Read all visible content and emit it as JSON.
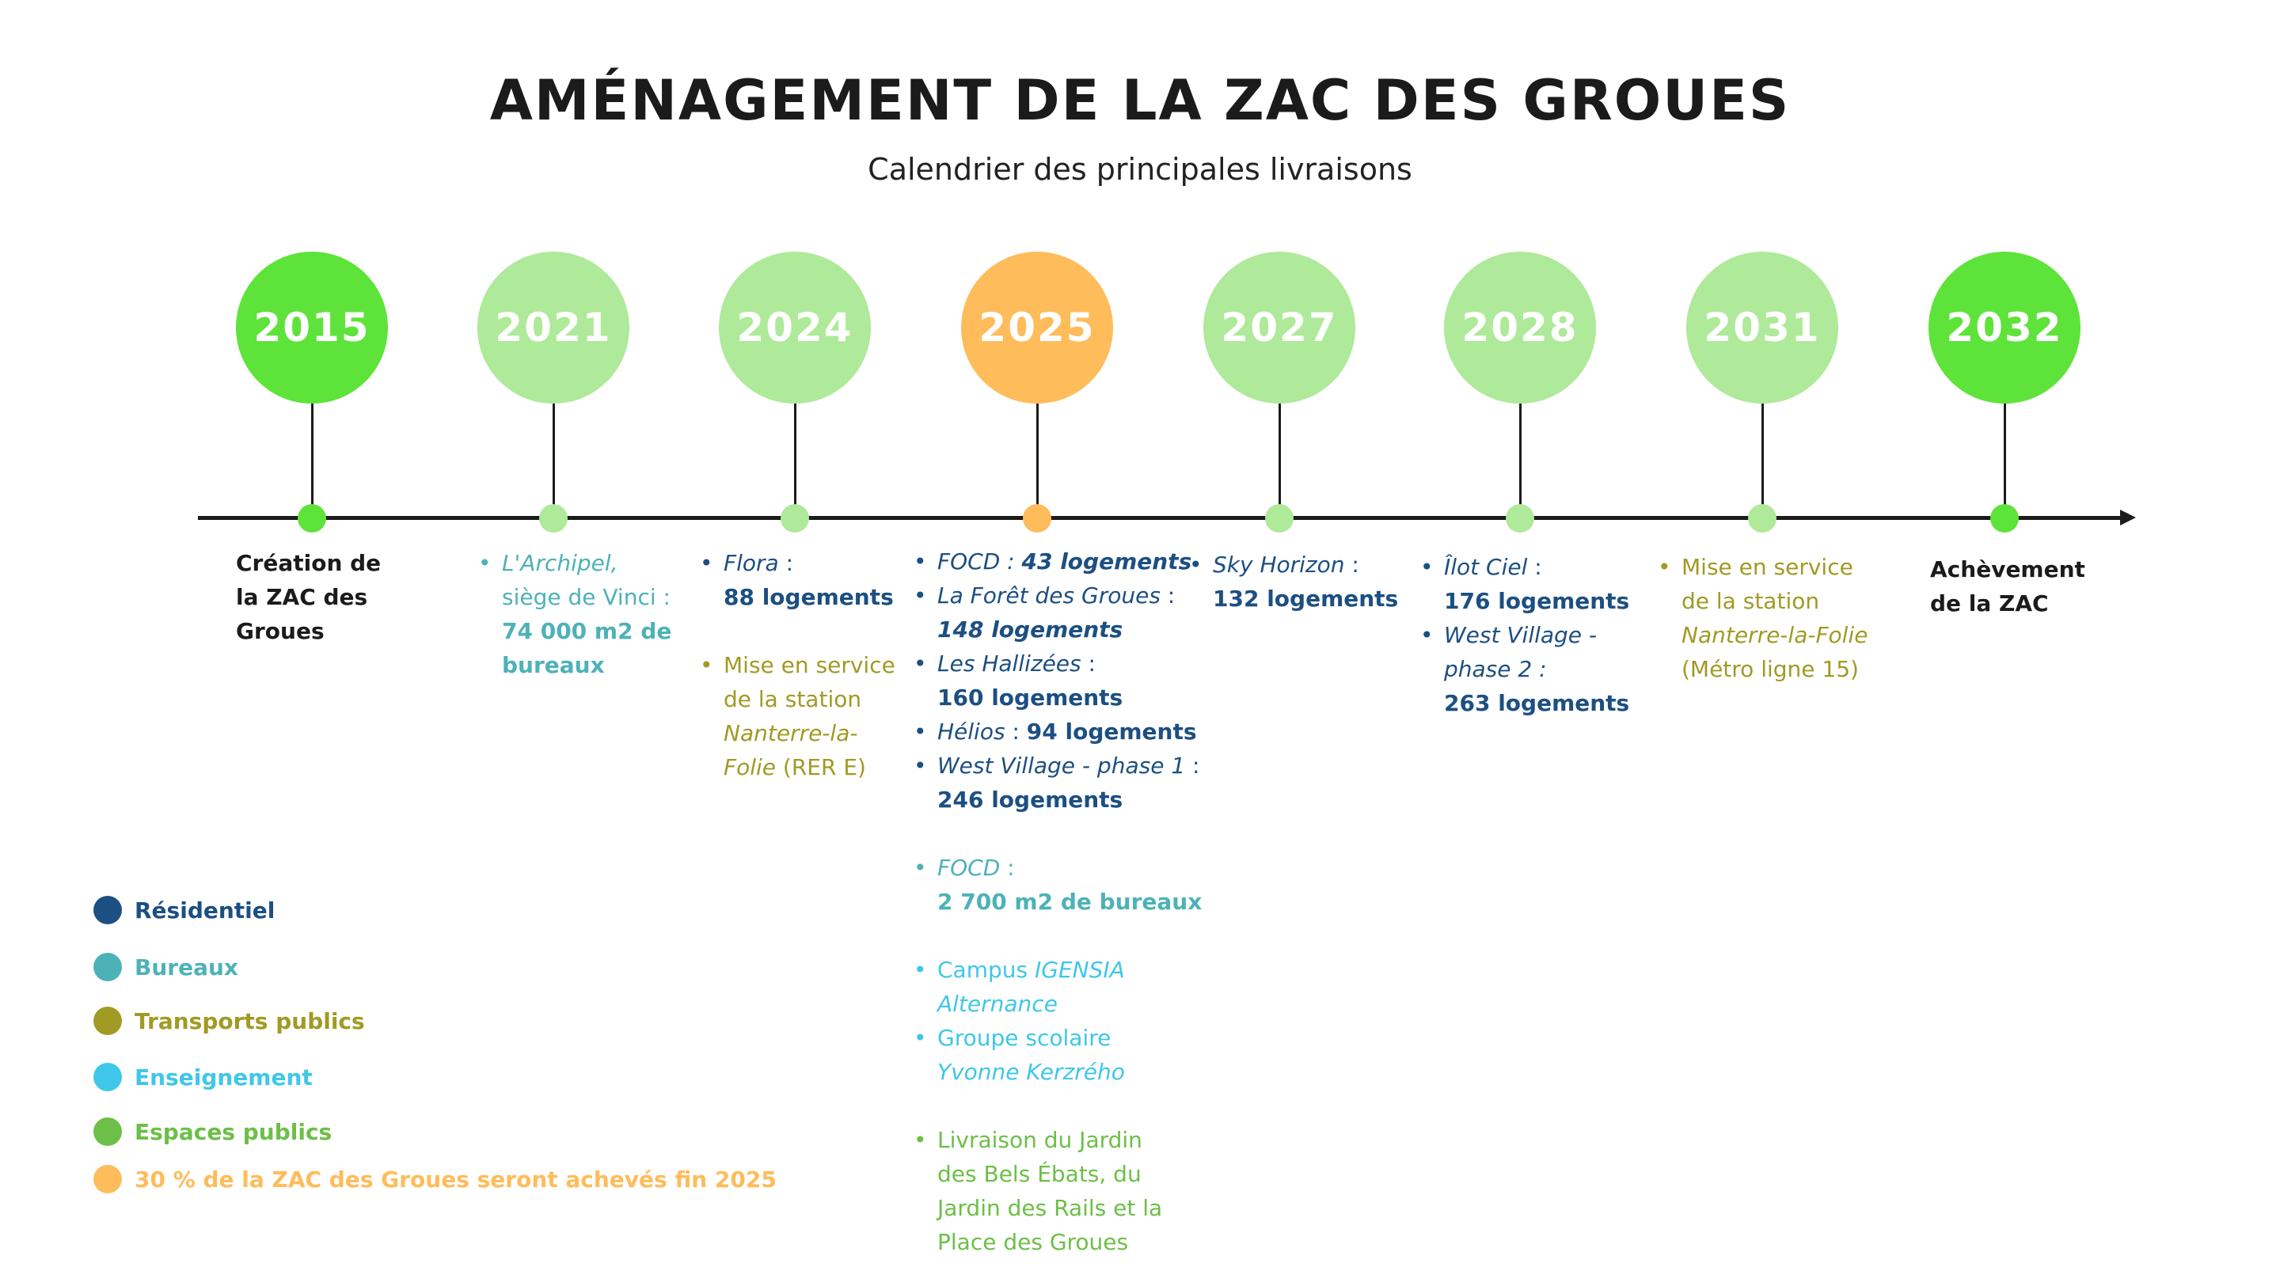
{
  "title": "AMÉNAGEMENT DE LA ZAC DES GROUES",
  "subtitle": "Calendrier des principales livraisons",
  "colors": {
    "milestone_green": "#5ee33a",
    "light_green": "#afe99a",
    "orange": "#ffbc5a",
    "axis": "#1b1b1b",
    "residentiel": "#1c4f82",
    "bureaux": "#4db2b8",
    "transports": "#a19a25",
    "enseignement": "#3ec7ea",
    "espaces_publics": "#6cbf47"
  },
  "years": [
    "2015",
    "2021",
    "2024",
    "2025",
    "2027",
    "2028",
    "2031",
    "2032"
  ],
  "col2015": {
    "line1": "Création de",
    "line2": "la ZAC des",
    "line3": "Groues"
  },
  "col2021": {
    "archipel": "L'Archipel,",
    "siege": "siège de Vinci :",
    "amount1": "74 000 m2 de",
    "amount2": "bureaux"
  },
  "col2024": {
    "flora": "Flora",
    "flora_sep": " :",
    "flora_amount": "88 logements",
    "transport1": "Mise en service",
    "transport2": "de la station",
    "transport3": "Nanterre-la-",
    "transport4": "Folie",
    "transport5": " (RER E)"
  },
  "col2025": {
    "focd": "FOCD",
    "focd_sep": " : ",
    "focd_amount": "43 logements",
    "foret": "La Forêt des Groues",
    "foret_sep": " :",
    "foret_amount": "148 logements",
    "hallizees": "Les Hallizées",
    "hallizees_sep": " :",
    "hallizees_amount": "160 logements",
    "helios": "Hélios",
    "helios_sep": " : ",
    "helios_amount": "94 logements",
    "westvillage": "West Village - phase 1",
    "westvillage_sep": " :",
    "westvillage_amount": "246 logements",
    "focd_bur": "FOCD",
    "focd_bur_sep": " :",
    "focd_bur_amount": "2 700 m2 de bureaux",
    "campus": "Campus ",
    "campus_name": "IGENSIA",
    "campus_name2": "Alternance",
    "groupe": "Groupe scolaire",
    "groupe_name": "Yvonne Kerzrého",
    "jardin1": "Livraison du Jardin",
    "jardin2": "des Bels Ébats, du",
    "jardin3": "Jardin des Rails et la",
    "jardin4": "Place des Groues"
  },
  "col2027": {
    "sky": "Sky Horizon",
    "sky_sep": " :",
    "sky_amount": "132 logements"
  },
  "col2028": {
    "ilot": "Îlot Ciel",
    "ilot_sep": " :",
    "ilot_amount": "176 logements",
    "west1": "West Village -",
    "west2": "phase 2 :",
    "west_amount": "263 logements"
  },
  "col2031": {
    "line1": "Mise en service",
    "line2": "de la station",
    "line3": "Nanterre-la-Folie",
    "line4": "(Métro ligne 15)"
  },
  "col2032": {
    "line1": "Achèvement",
    "line2": "de la ZAC"
  },
  "legend": {
    "residentiel": "Résidentiel",
    "bureaux": "Bureaux",
    "transports": "Transports publics",
    "enseignement": "Enseignement",
    "espaces": "Espaces publics",
    "note": "30 % de la ZAC des Groues seront achevés fin 2025"
  }
}
